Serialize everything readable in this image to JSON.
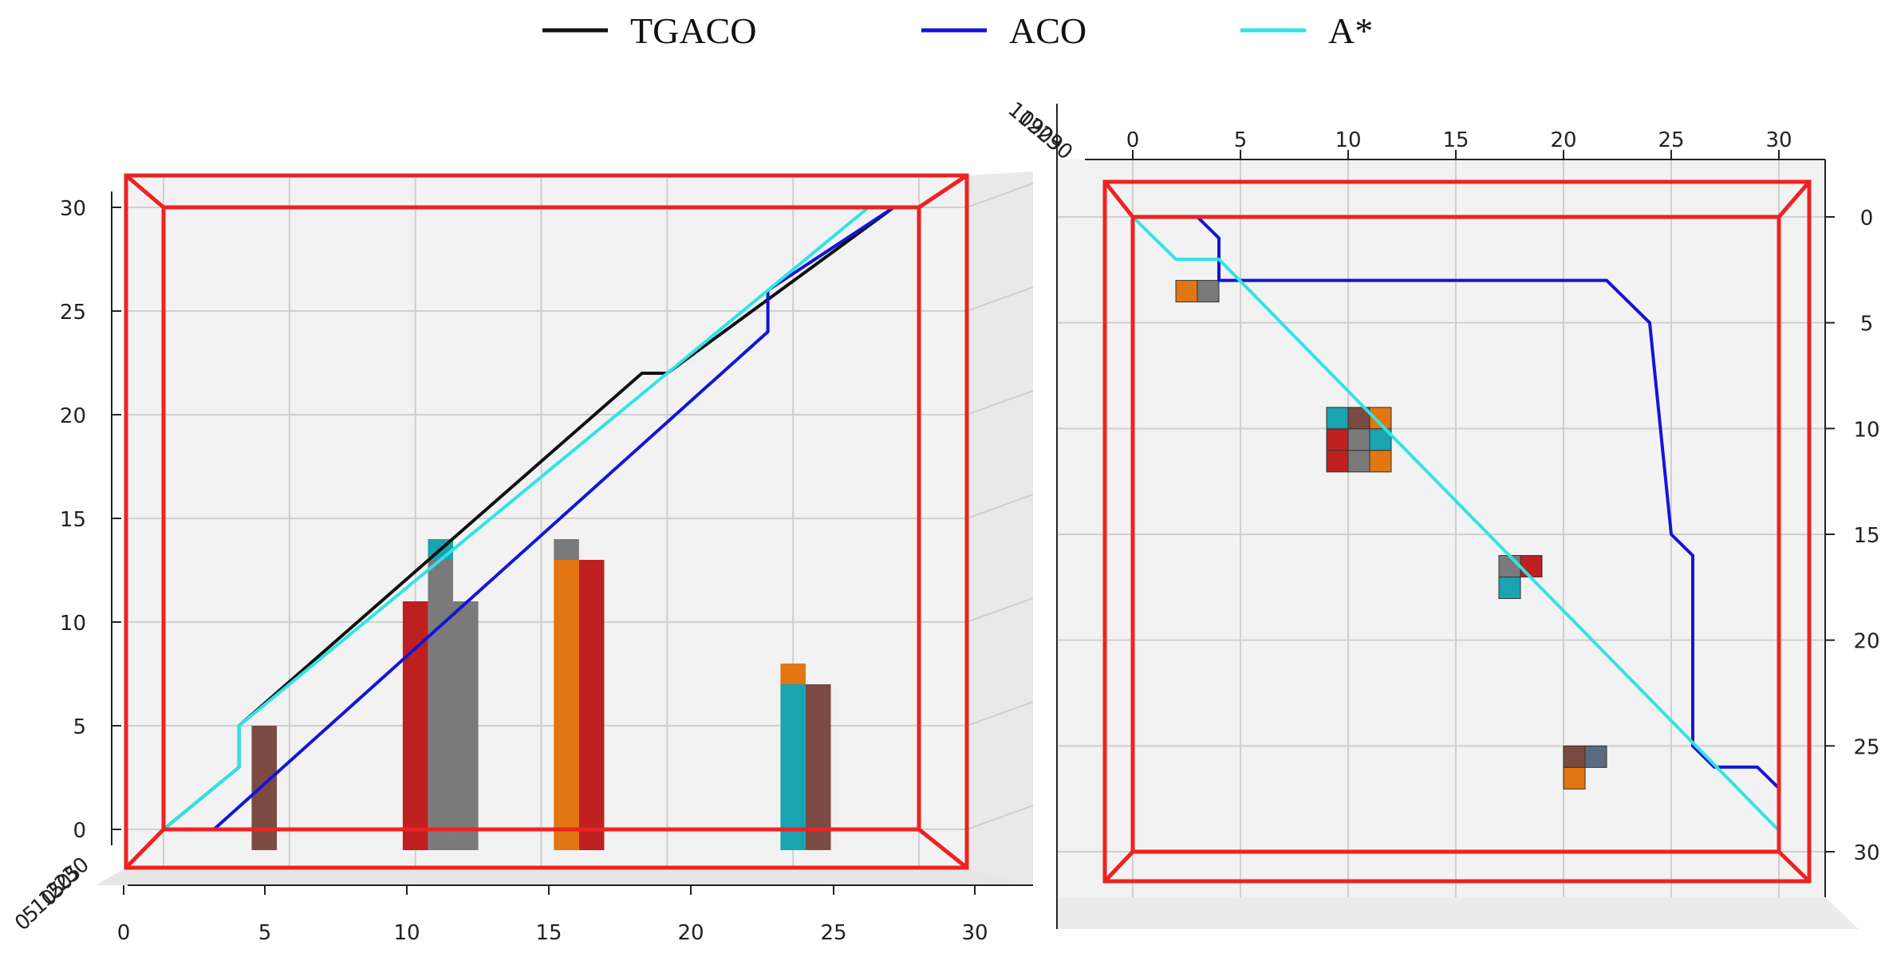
{
  "legend": {
    "items": [
      {
        "label": "TGACO",
        "color": "#111111"
      },
      {
        "label": "ACO",
        "color": "#1414d8"
      },
      {
        "label": "A*",
        "color": "#2fe3e8"
      }
    ],
    "placement": "top-center"
  },
  "chart_data": [
    {
      "type": "line",
      "view": "side (x-z plane)",
      "xlabel": "",
      "ylabel": "",
      "xlim": [
        0,
        30
      ],
      "ylim": [
        0,
        30
      ],
      "x_ticks": [
        "0",
        "5",
        "10",
        "15",
        "20",
        "25",
        "30"
      ],
      "y_ticks": [
        "0",
        "5",
        "10",
        "15",
        "20",
        "25",
        "30"
      ],
      "grid": true,
      "box_color": "#ee2222",
      "series": [
        {
          "name": "TGACO",
          "color": "#111111",
          "points": [
            [
              0,
              0
            ],
            [
              3,
              3
            ],
            [
              3,
              5
            ],
            [
              19,
              22
            ],
            [
              20,
              22
            ],
            [
              29,
              30
            ]
          ]
        },
        {
          "name": "ACO",
          "color": "#1414d8",
          "points": [
            [
              0,
              0
            ],
            [
              2,
              0
            ],
            [
              24,
              24
            ],
            [
              24,
              26
            ],
            [
              29,
              30
            ]
          ]
        },
        {
          "name": "A*",
          "color": "#2fe3e8",
          "points": [
            [
              0,
              0
            ],
            [
              3,
              3
            ],
            [
              3,
              5
            ],
            [
              28,
              30
            ],
            [
              30,
              30
            ]
          ]
        }
      ],
      "obstacles": [
        {
          "x": 4,
          "top": 5,
          "colors": [
            "#7b4a42"
          ]
        },
        {
          "x": 10,
          "top": 11,
          "colors": [
            "#be2020"
          ]
        },
        {
          "x": 11,
          "top": 14,
          "colors": [
            "#7a7a7a",
            "#1aa3b0"
          ]
        },
        {
          "x": 12,
          "top": 11,
          "colors": [
            "#7a7a7a"
          ]
        },
        {
          "x": 16,
          "top": 14,
          "colors": [
            "#e17612",
            "#7a7a7a"
          ]
        },
        {
          "x": 17,
          "top": 13,
          "colors": [
            "#be2020"
          ]
        },
        {
          "x": 25,
          "top": 8,
          "colors": [
            "#1aa3b0",
            "#e17612"
          ]
        },
        {
          "x": 26,
          "top": 7,
          "colors": [
            "#7b4a42"
          ]
        }
      ],
      "depth_tick_labels": [
        "0",
        "5",
        "10",
        "15",
        "20",
        "25",
        "30"
      ]
    },
    {
      "type": "line",
      "view": "top (x-y plane)",
      "xlabel": "",
      "ylabel": "",
      "xlim": [
        0,
        30
      ],
      "ylim": [
        0,
        30
      ],
      "x_ticks": [
        "0",
        "5",
        "10",
        "15",
        "20",
        "25",
        "30"
      ],
      "y_ticks": [
        "0",
        "5",
        "10",
        "15",
        "20",
        "25",
        "30"
      ],
      "grid": true,
      "box_color": "#ee2222",
      "series": [
        {
          "name": "ACO",
          "color": "#1414d8",
          "points": [
            [
              0,
              0
            ],
            [
              3,
              0
            ],
            [
              4,
              1
            ],
            [
              4,
              3
            ],
            [
              22,
              3
            ],
            [
              24,
              5
            ],
            [
              25,
              15
            ],
            [
              26,
              16
            ],
            [
              26,
              25
            ],
            [
              27,
              26
            ],
            [
              29,
              26
            ],
            [
              30,
              27
            ],
            [
              30,
              30
            ]
          ]
        },
        {
          "name": "A*",
          "color": "#2fe3e8",
          "points": [
            [
              0,
              0
            ],
            [
              2,
              2
            ],
            [
              4,
              2
            ],
            [
              30,
              29
            ],
            [
              30,
              30
            ]
          ]
        }
      ],
      "obstacles": [
        {
          "x": 2,
          "y": 3,
          "w": 2,
          "h": 1,
          "colors": [
            "#e17612",
            "#7a7a7a"
          ]
        },
        {
          "x": 9,
          "y": 9,
          "w": 3,
          "h": 3,
          "colors": [
            "#1aa3b0",
            "#7b4a42",
            "#e17612",
            "#be2020",
            "#7a7a7a",
            "#1aa3b0",
            "#be2020",
            "#7a7a7a",
            "#e17612"
          ]
        },
        {
          "x": 17,
          "y": 16,
          "w": 2,
          "h": 2,
          "colors": [
            "#7a7a7a",
            "#be2020",
            "#1aa3b0",
            "#ffffff"
          ]
        },
        {
          "x": 20,
          "y": 25,
          "w": 2,
          "h": 2,
          "colors": [
            "#7b4a42",
            "#5a6a80",
            "#e17612",
            "#ffffff"
          ]
        }
      ],
      "depth_tick_labels": [
        "10",
        "19",
        "20",
        "29",
        "30"
      ]
    }
  ]
}
